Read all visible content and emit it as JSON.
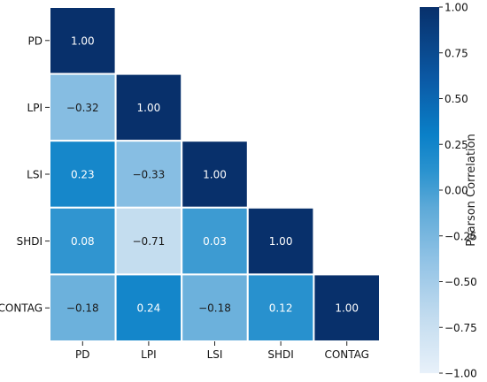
{
  "chart_data": {
    "type": "heatmap",
    "title": "",
    "xlabel": "",
    "ylabel": "",
    "variables": [
      "PD",
      "LPI",
      "LSI",
      "SHDI",
      "CONTAG"
    ],
    "matrix": [
      [
        1.0
      ],
      [
        -0.32,
        1.0
      ],
      [
        0.23,
        -0.33,
        1.0
      ],
      [
        0.08,
        -0.71,
        0.03,
        1.0
      ],
      [
        -0.18,
        0.24,
        -0.18,
        0.12,
        1.0
      ]
    ],
    "display_values": [
      [
        "1.00"
      ],
      [
        "−0.32",
        "1.00"
      ],
      [
        "0.23",
        "−0.33",
        "1.00"
      ],
      [
        "0.08",
        "−0.71",
        "0.03",
        "1.00"
      ],
      [
        "−0.18",
        "0.24",
        "−0.18",
        "0.12",
        "1.00"
      ]
    ],
    "triangle": "lower",
    "colorbar": {
      "label": "Pearson Correlation",
      "range": [
        -1.0,
        1.0
      ],
      "ticks": [
        1.0,
        0.75,
        0.5,
        0.25,
        0.0,
        -0.25,
        -0.5,
        -0.75,
        -1.0
      ],
      "tick_labels": [
        "1.00",
        "0.75",
        "0.50",
        "0.25",
        "0.00",
        "−0.25",
        "−0.50",
        "−0.75",
        "−1.00"
      ],
      "colormap": "Blues",
      "color_low": "#e3eef9",
      "color_high": "#08306b"
    },
    "grid": false
  }
}
